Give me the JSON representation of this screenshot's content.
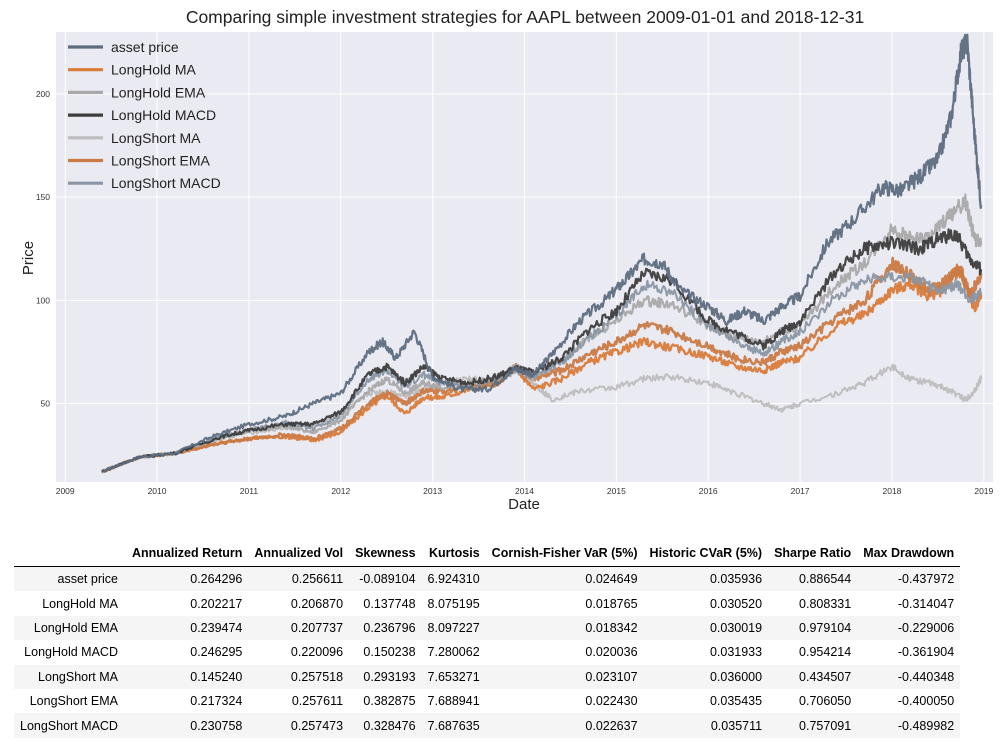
{
  "chart_data": {
    "type": "line",
    "title": "Comparing simple investment strategies for AAPL between 2009-01-01 and 2018-12-31",
    "xlabel": "Date",
    "ylabel": "Price",
    "xlim": [
      2008.9,
      2019.1
    ],
    "ylim": [
      12,
      230
    ],
    "x_ticks": [
      2009,
      2010,
      2011,
      2012,
      2013,
      2014,
      2015,
      2016,
      2017,
      2018,
      2019
    ],
    "x_tick_labels": [
      "2009",
      "2010",
      "2011",
      "2012",
      "2013",
      "2014",
      "2015",
      "2016",
      "2017",
      "2018",
      "2019"
    ],
    "y_ticks": [
      50,
      100,
      150,
      200
    ],
    "y_tick_labels": [
      "50",
      "100",
      "150",
      "200"
    ],
    "grid": true,
    "legend_position": "top-left",
    "background": "#eaeaf2",
    "series": [
      {
        "name": "asset price",
        "color": "#5d6d7e",
        "width": 2.2,
        "points": [
          [
            2009.4,
            17
          ],
          [
            2009.8,
            24
          ],
          [
            2010.2,
            26
          ],
          [
            2010.6,
            34
          ],
          [
            2011.0,
            40
          ],
          [
            2011.4,
            44
          ],
          [
            2011.7,
            50
          ],
          [
            2012.0,
            55
          ],
          [
            2012.3,
            75
          ],
          [
            2012.45,
            80
          ],
          [
            2012.6,
            72
          ],
          [
            2012.8,
            85
          ],
          [
            2013.0,
            63
          ],
          [
            2013.3,
            57
          ],
          [
            2013.6,
            57
          ],
          [
            2013.9,
            67
          ],
          [
            2014.1,
            64
          ],
          [
            2014.3,
            74
          ],
          [
            2014.6,
            90
          ],
          [
            2014.9,
            101
          ],
          [
            2015.1,
            110
          ],
          [
            2015.3,
            120
          ],
          [
            2015.5,
            118
          ],
          [
            2015.7,
            105
          ],
          [
            2016.0,
            97
          ],
          [
            2016.2,
            90
          ],
          [
            2016.4,
            95
          ],
          [
            2016.6,
            90
          ],
          [
            2016.8,
            97
          ],
          [
            2017.0,
            102
          ],
          [
            2017.3,
            128
          ],
          [
            2017.6,
            140
          ],
          [
            2017.9,
            155
          ],
          [
            2018.1,
            153
          ],
          [
            2018.3,
            160
          ],
          [
            2018.5,
            168
          ],
          [
            2018.65,
            190
          ],
          [
            2018.75,
            220
          ],
          [
            2018.82,
            225
          ],
          [
            2018.9,
            180
          ],
          [
            2018.97,
            146
          ]
        ]
      },
      {
        "name": "LongHold MA",
        "color": "#d97b39",
        "width": 2.4,
        "points": [
          [
            2009.4,
            17
          ],
          [
            2009.8,
            24
          ],
          [
            2010.2,
            26
          ],
          [
            2010.7,
            31
          ],
          [
            2011.0,
            33
          ],
          [
            2011.4,
            34
          ],
          [
            2011.7,
            32
          ],
          [
            2012.0,
            36
          ],
          [
            2012.3,
            48
          ],
          [
            2012.5,
            54
          ],
          [
            2012.7,
            45
          ],
          [
            2012.9,
            53
          ],
          [
            2013.1,
            53
          ],
          [
            2013.4,
            57
          ],
          [
            2013.7,
            60
          ],
          [
            2013.9,
            67
          ],
          [
            2014.1,
            57
          ],
          [
            2014.4,
            62
          ],
          [
            2014.7,
            70
          ],
          [
            2015.0,
            75
          ],
          [
            2015.3,
            80
          ],
          [
            2015.6,
            77
          ],
          [
            2016.0,
            73
          ],
          [
            2016.3,
            68
          ],
          [
            2016.6,
            66
          ],
          [
            2016.8,
            70
          ],
          [
            2017.0,
            72
          ],
          [
            2017.4,
            88
          ],
          [
            2017.7,
            93
          ],
          [
            2018.0,
            105
          ],
          [
            2018.2,
            108
          ],
          [
            2018.4,
            102
          ],
          [
            2018.55,
            105
          ],
          [
            2018.7,
            115
          ],
          [
            2018.8,
            108
          ],
          [
            2018.9,
            96
          ],
          [
            2018.97,
            103
          ]
        ]
      },
      {
        "name": "LongHold EMA",
        "color": "#a9a9a9",
        "width": 2.2,
        "points": [
          [
            2009.4,
            17
          ],
          [
            2009.8,
            24
          ],
          [
            2010.2,
            26
          ],
          [
            2010.7,
            34
          ],
          [
            2011.0,
            37
          ],
          [
            2011.4,
            39
          ],
          [
            2011.7,
            36
          ],
          [
            2012.0,
            42
          ],
          [
            2012.3,
            56
          ],
          [
            2012.5,
            62
          ],
          [
            2012.7,
            55
          ],
          [
            2012.9,
            60
          ],
          [
            2013.1,
            58
          ],
          [
            2013.4,
            60
          ],
          [
            2013.7,
            62
          ],
          [
            2013.9,
            68
          ],
          [
            2014.1,
            62
          ],
          [
            2014.4,
            70
          ],
          [
            2014.7,
            82
          ],
          [
            2015.0,
            90
          ],
          [
            2015.3,
            100
          ],
          [
            2015.6,
            98
          ],
          [
            2016.0,
            88
          ],
          [
            2016.3,
            82
          ],
          [
            2016.6,
            80
          ],
          [
            2016.8,
            85
          ],
          [
            2017.0,
            88
          ],
          [
            2017.4,
            108
          ],
          [
            2017.7,
            118
          ],
          [
            2018.0,
            135
          ],
          [
            2018.2,
            130
          ],
          [
            2018.4,
            130
          ],
          [
            2018.6,
            140
          ],
          [
            2018.8,
            148
          ],
          [
            2018.9,
            130
          ],
          [
            2018.97,
            127
          ]
        ]
      },
      {
        "name": "LongHold MACD",
        "color": "#3d3d3d",
        "width": 2.2,
        "points": [
          [
            2009.4,
            17
          ],
          [
            2009.8,
            24
          ],
          [
            2010.2,
            26
          ],
          [
            2010.7,
            34
          ],
          [
            2011.0,
            37
          ],
          [
            2011.4,
            40
          ],
          [
            2011.7,
            40
          ],
          [
            2012.0,
            46
          ],
          [
            2012.3,
            64
          ],
          [
            2012.5,
            68
          ],
          [
            2012.7,
            60
          ],
          [
            2012.9,
            68
          ],
          [
            2013.1,
            62
          ],
          [
            2013.4,
            60
          ],
          [
            2013.7,
            63
          ],
          [
            2013.9,
            67
          ],
          [
            2014.1,
            65
          ],
          [
            2014.4,
            72
          ],
          [
            2014.7,
            86
          ],
          [
            2015.0,
            95
          ],
          [
            2015.3,
            113
          ],
          [
            2015.6,
            110
          ],
          [
            2016.0,
            90
          ],
          [
            2016.3,
            84
          ],
          [
            2016.6,
            78
          ],
          [
            2016.8,
            85
          ],
          [
            2017.0,
            90
          ],
          [
            2017.4,
            115
          ],
          [
            2017.7,
            125
          ],
          [
            2018.0,
            128
          ],
          [
            2018.3,
            125
          ],
          [
            2018.5,
            130
          ],
          [
            2018.7,
            132
          ],
          [
            2018.85,
            120
          ],
          [
            2018.97,
            115
          ]
        ]
      },
      {
        "name": "LongShort MA",
        "color": "#bdbdbd",
        "width": 2.0,
        "points": [
          [
            2009.4,
            17
          ],
          [
            2009.8,
            24
          ],
          [
            2010.2,
            26
          ],
          [
            2010.7,
            33
          ],
          [
            2011.0,
            36
          ],
          [
            2011.4,
            38
          ],
          [
            2011.7,
            40
          ],
          [
            2012.0,
            44
          ],
          [
            2012.3,
            55
          ],
          [
            2012.5,
            56
          ],
          [
            2012.7,
            54
          ],
          [
            2012.9,
            57
          ],
          [
            2013.1,
            60
          ],
          [
            2013.4,
            62
          ],
          [
            2013.7,
            60
          ],
          [
            2013.9,
            66
          ],
          [
            2014.1,
            60
          ],
          [
            2014.3,
            52
          ],
          [
            2014.6,
            56
          ],
          [
            2015.0,
            58
          ],
          [
            2015.3,
            62
          ],
          [
            2015.6,
            63
          ],
          [
            2016.0,
            60
          ],
          [
            2016.3,
            55
          ],
          [
            2016.6,
            50
          ],
          [
            2016.8,
            47
          ],
          [
            2017.0,
            50
          ],
          [
            2017.4,
            55
          ],
          [
            2017.7,
            60
          ],
          [
            2018.0,
            68
          ],
          [
            2018.2,
            62
          ],
          [
            2018.4,
            60
          ],
          [
            2018.6,
            57
          ],
          [
            2018.8,
            52
          ],
          [
            2018.9,
            56
          ],
          [
            2018.97,
            62
          ]
        ]
      },
      {
        "name": "LongShort EMA",
        "color": "#c97a45",
        "width": 2.6,
        "points": [
          [
            2009.4,
            17
          ],
          [
            2009.8,
            24
          ],
          [
            2010.2,
            26
          ],
          [
            2010.7,
            31
          ],
          [
            2011.0,
            33
          ],
          [
            2011.4,
            35
          ],
          [
            2011.7,
            33
          ],
          [
            2012.0,
            38
          ],
          [
            2012.3,
            50
          ],
          [
            2012.5,
            55
          ],
          [
            2012.7,
            50
          ],
          [
            2012.9,
            56
          ],
          [
            2013.1,
            56
          ],
          [
            2013.4,
            58
          ],
          [
            2013.7,
            60
          ],
          [
            2013.9,
            68
          ],
          [
            2014.1,
            62
          ],
          [
            2014.4,
            66
          ],
          [
            2014.7,
            74
          ],
          [
            2015.0,
            80
          ],
          [
            2015.3,
            88
          ],
          [
            2015.6,
            85
          ],
          [
            2016.0,
            78
          ],
          [
            2016.3,
            72
          ],
          [
            2016.6,
            70
          ],
          [
            2016.8,
            75
          ],
          [
            2017.0,
            78
          ],
          [
            2017.4,
            92
          ],
          [
            2017.7,
            100
          ],
          [
            2018.0,
            118
          ],
          [
            2018.2,
            112
          ],
          [
            2018.4,
            105
          ],
          [
            2018.6,
            110
          ],
          [
            2018.75,
            115
          ],
          [
            2018.85,
            102
          ],
          [
            2018.97,
            113
          ]
        ]
      },
      {
        "name": "LongShort MACD",
        "color": "#8a96a3",
        "width": 2.0,
        "points": [
          [
            2009.4,
            17
          ],
          [
            2009.8,
            24
          ],
          [
            2010.2,
            26
          ],
          [
            2010.7,
            34
          ],
          [
            2011.0,
            37
          ],
          [
            2011.4,
            41
          ],
          [
            2011.7,
            38
          ],
          [
            2012.0,
            44
          ],
          [
            2012.3,
            62
          ],
          [
            2012.5,
            66
          ],
          [
            2012.7,
            58
          ],
          [
            2012.9,
            64
          ],
          [
            2013.1,
            60
          ],
          [
            2013.4,
            58
          ],
          [
            2013.7,
            62
          ],
          [
            2013.9,
            66
          ],
          [
            2014.1,
            63
          ],
          [
            2014.4,
            70
          ],
          [
            2014.7,
            82
          ],
          [
            2015.0,
            92
          ],
          [
            2015.3,
            108
          ],
          [
            2015.6,
            104
          ],
          [
            2016.0,
            88
          ],
          [
            2016.3,
            80
          ],
          [
            2016.6,
            74
          ],
          [
            2016.8,
            80
          ],
          [
            2017.0,
            85
          ],
          [
            2017.4,
            102
          ],
          [
            2017.7,
            110
          ],
          [
            2018.0,
            112
          ],
          [
            2018.3,
            110
          ],
          [
            2018.5,
            104
          ],
          [
            2018.7,
            108
          ],
          [
            2018.85,
            100
          ],
          [
            2018.97,
            104
          ]
        ]
      }
    ]
  },
  "table": {
    "columns": [
      "Annualized Return",
      "Annualized Vol",
      "Skewness",
      "Kurtosis",
      "Cornish-Fisher VaR (5%)",
      "Historic CVaR (5%)",
      "Sharpe Ratio",
      "Max Drawdown"
    ],
    "rows": [
      {
        "label": "asset price",
        "values": [
          "0.264296",
          "0.256611",
          "-0.089104",
          "6.924310",
          "0.024649",
          "0.035936",
          "0.886544",
          "-0.437972"
        ]
      },
      {
        "label": "LongHold MA",
        "values": [
          "0.202217",
          "0.206870",
          "0.137748",
          "8.075195",
          "0.018765",
          "0.030520",
          "0.808331",
          "-0.314047"
        ]
      },
      {
        "label": "LongHold EMA",
        "values": [
          "0.239474",
          "0.207737",
          "0.236796",
          "8.097227",
          "0.018342",
          "0.030019",
          "0.979104",
          "-0.229006"
        ]
      },
      {
        "label": "LongHold MACD",
        "values": [
          "0.246295",
          "0.220096",
          "0.150238",
          "7.280062",
          "0.020036",
          "0.031933",
          "0.954214",
          "-0.361904"
        ]
      },
      {
        "label": "LongShort MA",
        "values": [
          "0.145240",
          "0.257518",
          "0.293193",
          "7.653271",
          "0.023107",
          "0.036000",
          "0.434507",
          "-0.440348"
        ]
      },
      {
        "label": "LongShort EMA",
        "values": [
          "0.217324",
          "0.257611",
          "0.382875",
          "7.688941",
          "0.022430",
          "0.035435",
          "0.706050",
          "-0.400050"
        ]
      },
      {
        "label": "LongShort MACD",
        "values": [
          "0.230758",
          "0.257473",
          "0.328476",
          "7.687635",
          "0.022637",
          "0.035711",
          "0.757091",
          "-0.489982"
        ]
      }
    ]
  }
}
